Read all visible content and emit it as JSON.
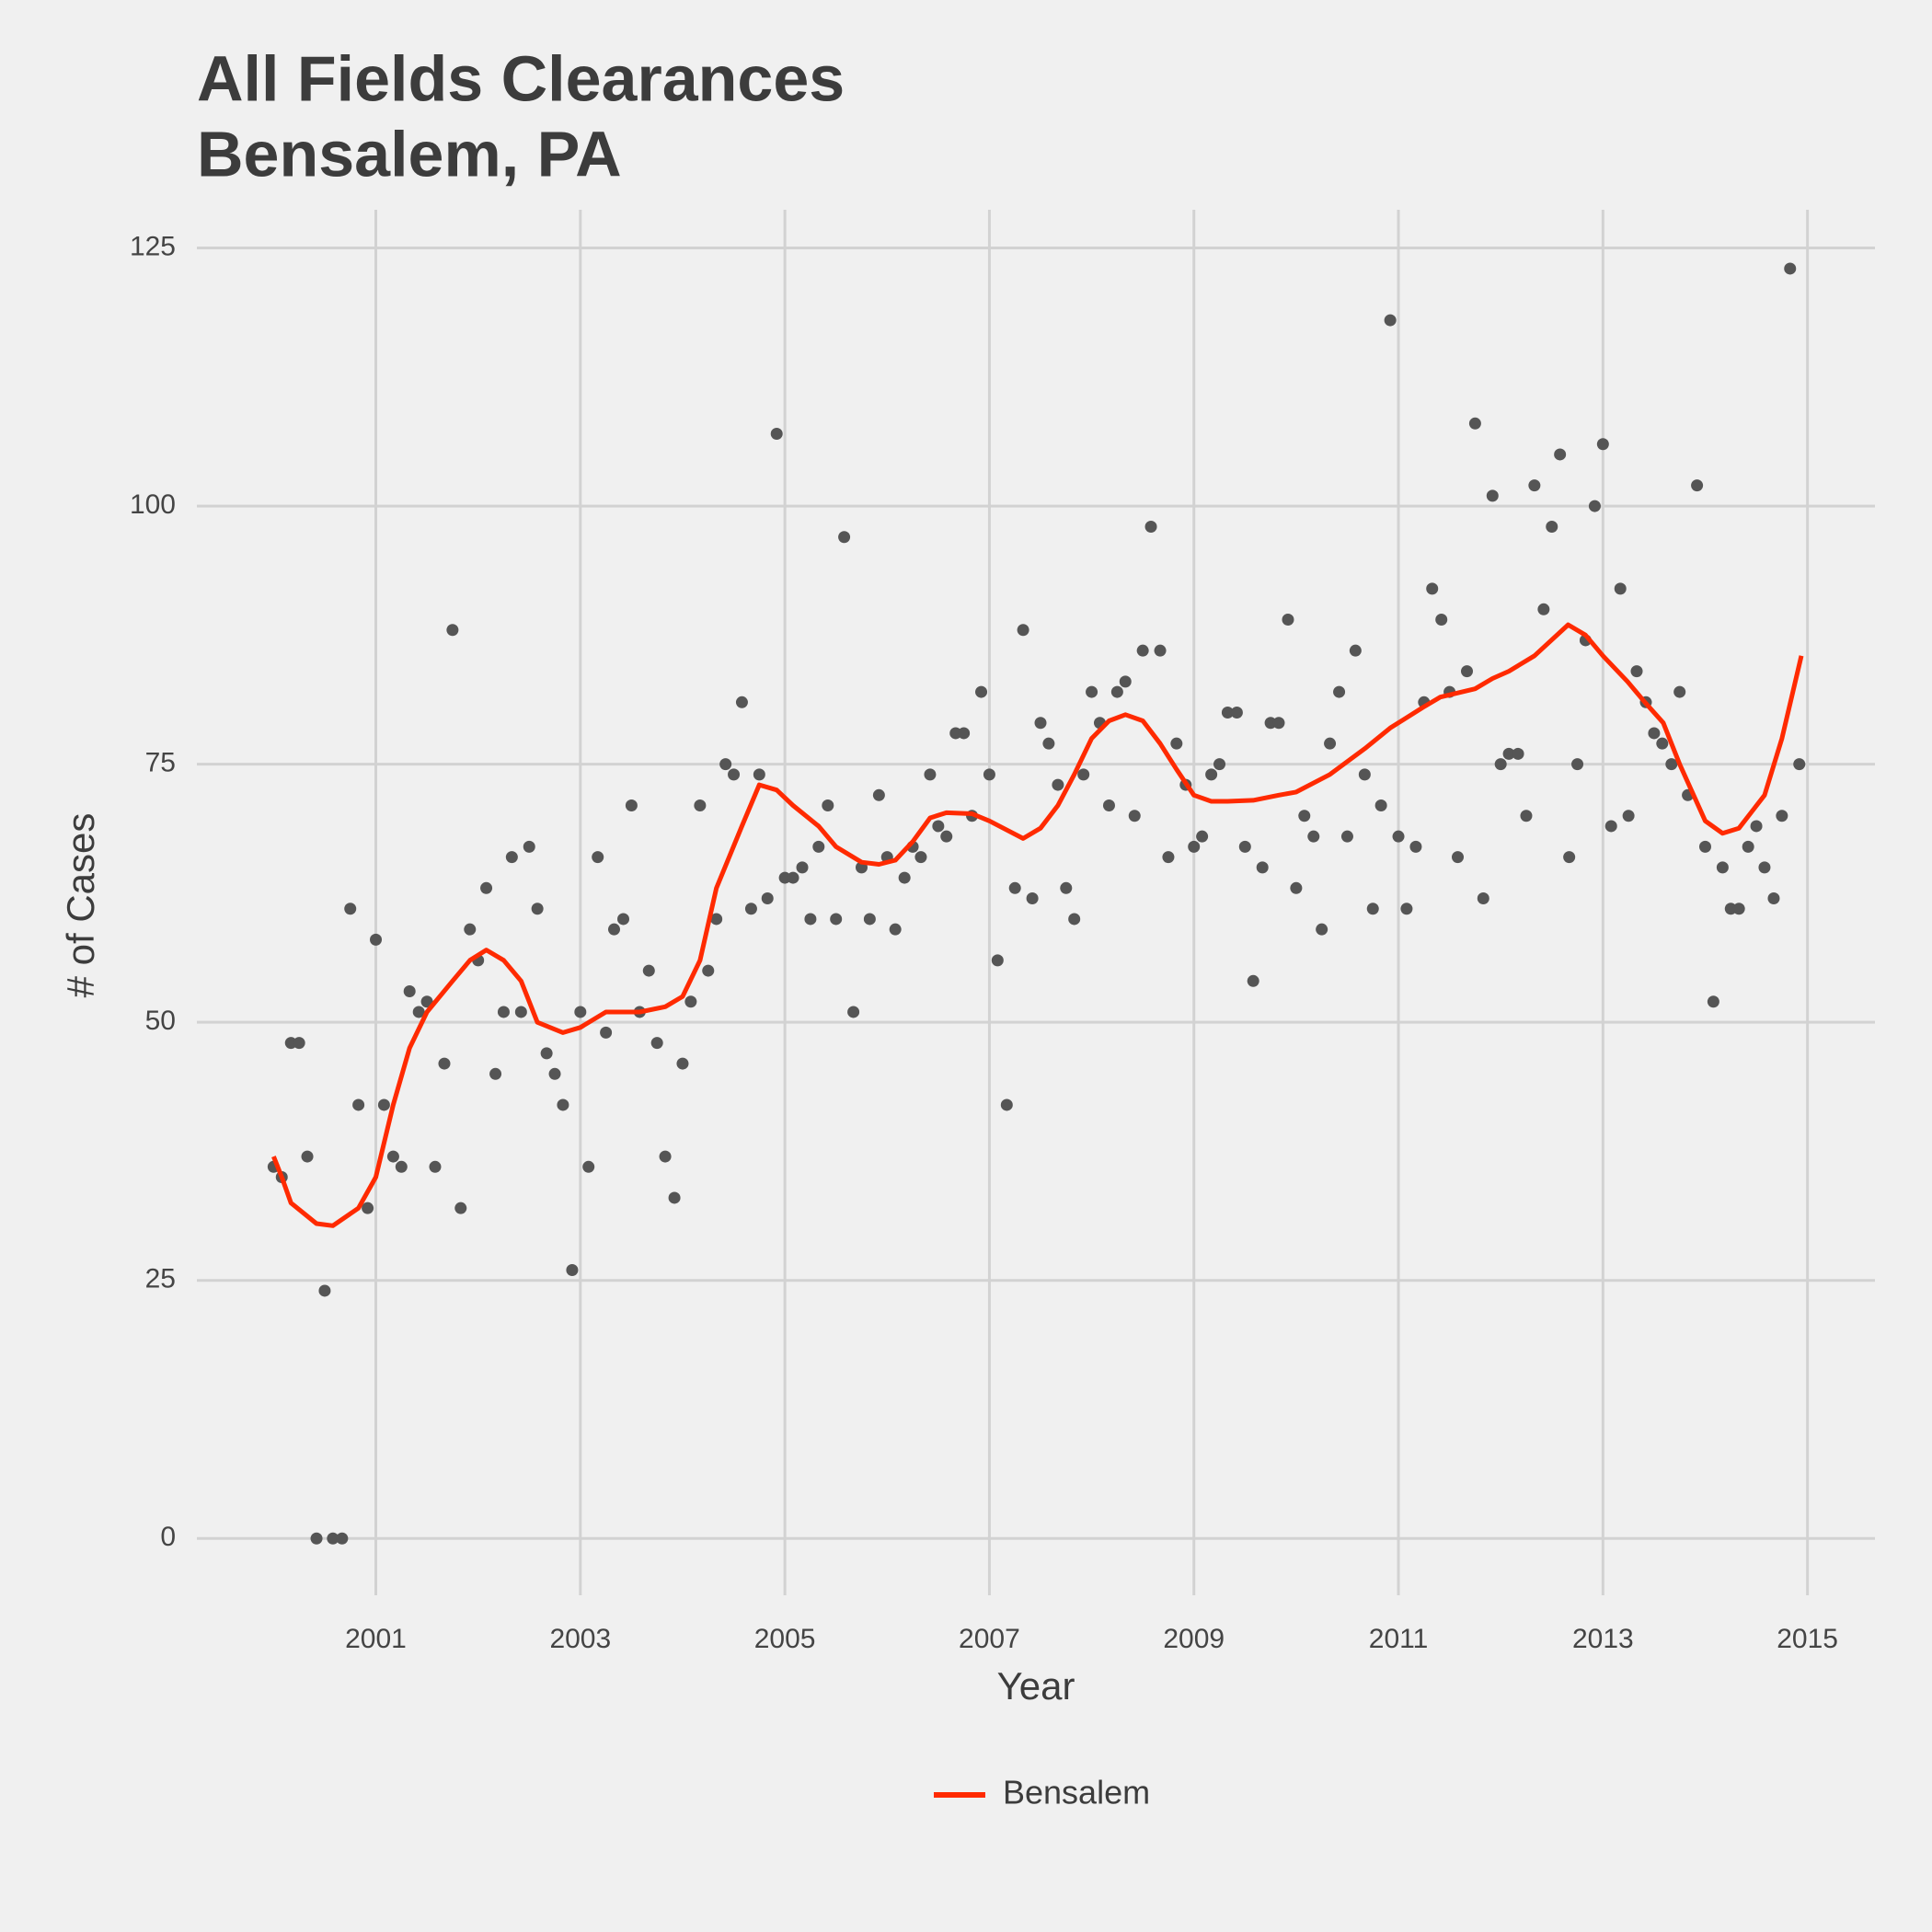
{
  "chart_data": {
    "type": "scatter",
    "title": "All Fields Clearances",
    "subtitle": "Bensalem, PA",
    "x_label": "Year",
    "y_label": "# of Cases",
    "xlim": [
      1999.25,
      2015.66
    ],
    "ylim": [
      -5.5,
      128.7
    ],
    "xticks": [
      2001,
      2003,
      2005,
      2007,
      2009,
      2011,
      2013,
      2015
    ],
    "yticks": [
      0,
      25,
      50,
      75,
      100,
      125
    ],
    "grid": true,
    "legend_position": "bottom",
    "points": {
      "color": "#555555",
      "x": [
        2000,
        2000.08,
        2000.17,
        2000.25,
        2000.33,
        2000.42,
        2000.5,
        2000.58,
        2000.67,
        2000.75,
        2000.83,
        2000.92,
        2001,
        2001.08,
        2001.17,
        2001.25,
        2001.33,
        2001.42,
        2001.5,
        2001.58,
        2001.67,
        2001.75,
        2001.83,
        2001.92,
        2002,
        2002.08,
        2002.17,
        2002.25,
        2002.33,
        2002.42,
        2002.5,
        2002.58,
        2002.67,
        2002.75,
        2002.83,
        2002.92,
        2003,
        2003.08,
        2003.17,
        2003.25,
        2003.33,
        2003.42,
        2003.5,
        2003.58,
        2003.67,
        2003.75,
        2003.83,
        2003.92,
        2004,
        2004.08,
        2004.17,
        2004.25,
        2004.33,
        2004.42,
        2004.5,
        2004.58,
        2004.67,
        2004.75,
        2004.83,
        2004.92,
        2005,
        2005.08,
        2005.17,
        2005.25,
        2005.33,
        2005.42,
        2005.5,
        2005.58,
        2005.67,
        2005.75,
        2005.83,
        2005.92,
        2006,
        2006.08,
        2006.17,
        2006.25,
        2006.33,
        2006.42,
        2006.5,
        2006.58,
        2006.67,
        2006.75,
        2006.83,
        2006.92,
        2007,
        2007.08,
        2007.17,
        2007.25,
        2007.33,
        2007.42,
        2007.5,
        2007.58,
        2007.67,
        2007.75,
        2007.83,
        2007.92,
        2008,
        2008.08,
        2008.17,
        2008.25,
        2008.33,
        2008.42,
        2008.5,
        2008.58,
        2008.67,
        2008.75,
        2008.83,
        2008.92,
        2009,
        2009.08,
        2009.17,
        2009.25,
        2009.33,
        2009.42,
        2009.5,
        2009.58,
        2009.67,
        2009.75,
        2009.83,
        2009.92,
        2010,
        2010.08,
        2010.17,
        2010.25,
        2010.33,
        2010.42,
        2010.5,
        2010.58,
        2010.67,
        2010.75,
        2010.83,
        2010.92,
        2011,
        2011.08,
        2011.17,
        2011.25,
        2011.33,
        2011.42,
        2011.5,
        2011.58,
        2011.67,
        2011.75,
        2011.83,
        2011.92,
        2012,
        2012.08,
        2012.17,
        2012.25,
        2012.33,
        2012.42,
        2012.5,
        2012.58,
        2012.67,
        2012.75,
        2012.83,
        2012.92,
        2013,
        2013.08,
        2013.17,
        2013.25,
        2013.33,
        2013.42,
        2013.5,
        2013.58,
        2013.67,
        2013.75,
        2013.83,
        2013.92,
        2014,
        2014.08,
        2014.17,
        2014.25,
        2014.33,
        2014.42,
        2014.5,
        2014.58,
        2014.67,
        2014.75,
        2014.83,
        2014.92
      ],
      "values": [
        36,
        35,
        48,
        48,
        37,
        0,
        24,
        0,
        0,
        61,
        42,
        32,
        58,
        42,
        37,
        36,
        53,
        51,
        52,
        36,
        46,
        88,
        32,
        59,
        56,
        63,
        45,
        51,
        66,
        51,
        67,
        61,
        47,
        45,
        42,
        26,
        51,
        36,
        66,
        49,
        59,
        60,
        71,
        51,
        55,
        48,
        37,
        33,
        46,
        52,
        71,
        55,
        60,
        75,
        74,
        81,
        61,
        74,
        62,
        107,
        64,
        64,
        65,
        60,
        67,
        71,
        60,
        97,
        51,
        65,
        60,
        72,
        66,
        59,
        64,
        67,
        66,
        74,
        69,
        68,
        78,
        78,
        70,
        82,
        74,
        56,
        42,
        63,
        88,
        62,
        79,
        77,
        73,
        63,
        60,
        74,
        82,
        79,
        71,
        82,
        83,
        70,
        86,
        98,
        86,
        66,
        77,
        73,
        67,
        68,
        74,
        75,
        80,
        80,
        67,
        54,
        65,
        79,
        79,
        89,
        63,
        70,
        68,
        59,
        77,
        82,
        68,
        86,
        74,
        61,
        71,
        118,
        68,
        61,
        67,
        81,
        92,
        89,
        82,
        66,
        84,
        108,
        62,
        101,
        75,
        76,
        76,
        70,
        102,
        90,
        98,
        105,
        66,
        75,
        87,
        100,
        106,
        69,
        92,
        70,
        84,
        81,
        78,
        77,
        75,
        82,
        72,
        102,
        67,
        52,
        65,
        61,
        61,
        67,
        69,
        65,
        62,
        70,
        123,
        75
      ]
    },
    "series": [
      {
        "name": "Bensalem",
        "color": "#ff2a00",
        "x": [
          2000,
          2000.08,
          2000.17,
          2000.42,
          2000.58,
          2000.83,
          2001,
          2001.17,
          2001.33,
          2001.5,
          2001.75,
          2001.92,
          2002.08,
          2002.25,
          2002.42,
          2002.58,
          2002.83,
          2003,
          2003.25,
          2003.58,
          2003.83,
          2004,
          2004.17,
          2004.33,
          2004.58,
          2004.75,
          2004.92,
          2005.08,
          2005.33,
          2005.5,
          2005.75,
          2005.92,
          2006.08,
          2006.25,
          2006.42,
          2006.58,
          2006.83,
          2007,
          2007.33,
          2007.5,
          2007.67,
          2007.83,
          2008,
          2008.17,
          2008.33,
          2008.5,
          2008.67,
          2008.83,
          2009,
          2009.17,
          2009.33,
          2009.58,
          2009.83,
          2010,
          2010.33,
          2010.67,
          2010.92,
          2011.24,
          2011.41,
          2011.75,
          2011.92,
          2012.08,
          2012.33,
          2012.66,
          2012.83,
          2013,
          2013.24,
          2013.41,
          2013.59,
          2013.75,
          2014,
          2014.17,
          2014.33,
          2014.58,
          2014.75,
          2014.94
        ],
        "values": [
          37,
          35,
          32.5,
          30.5,
          30.3,
          32,
          35,
          42,
          47.5,
          51,
          54,
          56,
          57,
          56,
          54,
          50,
          49,
          49.5,
          51,
          51,
          51.5,
          52.5,
          56,
          63,
          69,
          73,
          72.5,
          71,
          69,
          67,
          65.5,
          65.3,
          65.7,
          67.5,
          69.8,
          70.3,
          70.2,
          69.5,
          67.8,
          68.8,
          71,
          74,
          77.5,
          79.2,
          79.8,
          79.2,
          77,
          74.5,
          72,
          71.4,
          71.4,
          71.5,
          72,
          72.3,
          74,
          76.5,
          78.5,
          80.5,
          81.5,
          82.3,
          83.3,
          84,
          85.5,
          88.5,
          87.5,
          85.5,
          83,
          81,
          79,
          75,
          69.5,
          68.3,
          68.8,
          72,
          77.5,
          85.5
        ]
      }
    ]
  }
}
